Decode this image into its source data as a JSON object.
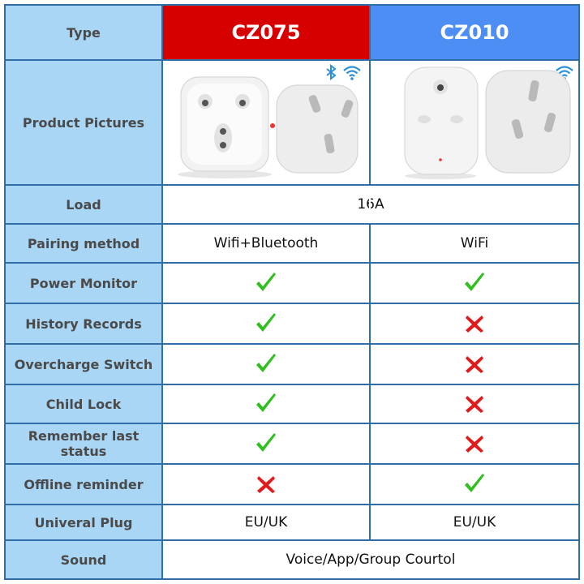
{
  "header": {
    "type_label": "Type",
    "model_a": "CZ075",
    "model_b": "CZ010",
    "model_a_color": "#d70000",
    "model_b_color": "#4d8ef5"
  },
  "pictures_label": "Product Pictures",
  "pictures": {
    "model_a_icons": [
      "bluetooth-icon",
      "wifi-icon"
    ],
    "model_b_icons": [
      "wifi-icon"
    ]
  },
  "rows": [
    {
      "key": "load",
      "label": "Load",
      "merged": "16A"
    },
    {
      "key": "pairing",
      "label": "Pairing method",
      "a": "Wifi+Bluetooth",
      "b": "WiFi"
    },
    {
      "key": "power-monitor",
      "label": "Power Monitor",
      "a": "check",
      "b": "check"
    },
    {
      "key": "history-records",
      "label": "History Records",
      "a": "check",
      "b": "cross"
    },
    {
      "key": "overcharge-switch",
      "label": "Overcharge Switch",
      "a": "check",
      "b": "cross"
    },
    {
      "key": "child-lock",
      "label": "Child Lock",
      "a": "check",
      "b": "cross"
    },
    {
      "key": "remember-status",
      "label": "Remember last status",
      "a": "check",
      "b": "cross"
    },
    {
      "key": "offline-reminder",
      "label": "Offline reminder",
      "a": "cross",
      "b": "check"
    },
    {
      "key": "universal-plug",
      "label": "Univeral Plug",
      "a": "EU/UK",
      "b": "EU/UK"
    },
    {
      "key": "sound",
      "label": "Sound",
      "merged": "Voice/App/Group Courtol"
    }
  ],
  "colors": {
    "label_bg": "#a9d6f5",
    "border": "#2f6ea7",
    "check": "#2fbf1e",
    "cross": "#e01b1b"
  }
}
